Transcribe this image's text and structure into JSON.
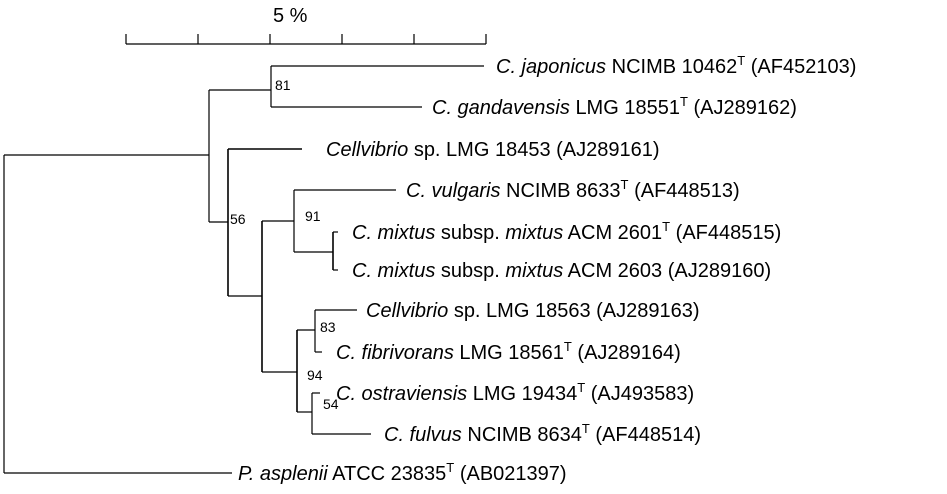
{
  "scale_bar": {
    "label": "5 %"
  },
  "taxa": {
    "japonicus": {
      "species": "C. japonicus",
      "strain": "NCIMB 10462",
      "type_mark": "T",
      "accession": "(AF452103)"
    },
    "gandavensis": {
      "species": "C. gandavensis",
      "strain": "LMG 18551",
      "type_mark": "T",
      "accession": "(AJ289162)"
    },
    "cellvibrio_18453": {
      "genus": "Cellvibrio",
      "rest": "sp. LMG 18453 (AJ289161)"
    },
    "vulgaris": {
      "species": "C. vulgaris",
      "strain": "NCIMB 8633",
      "type_mark": "T",
      "accession": "(AF448513)"
    },
    "mixtus_2601": {
      "species": "C. mixtus",
      "sub": "subsp.",
      "subspecies": "mixtus",
      "strain": "ACM 2601",
      "type_mark": "T",
      "accession": "(AF448515)"
    },
    "mixtus_2603": {
      "species": "C. mixtus",
      "sub": "subsp.",
      "subspecies": "mixtus",
      "strain": "ACM 2603",
      "accession": "(AJ289160)"
    },
    "cellvibrio_18563": {
      "genus": "Cellvibrio",
      "rest": "sp. LMG 18563 (AJ289163)"
    },
    "fibrivorans": {
      "species": "C. fibrivorans",
      "strain": "LMG 18561",
      "type_mark": "T",
      "accession": "(AJ289164)"
    },
    "ostraviensis": {
      "species": "C. ostraviensis",
      "strain": "LMG 19434",
      "type_mark": "T",
      "accession": "(AJ493583)"
    },
    "fulvus": {
      "species": "C. fulvus",
      "strain": "NCIMB 8634",
      "type_mark": "T",
      "accession": "(AF448514)"
    },
    "asplenii": {
      "species": "P. asplenii",
      "strain": "ATCC 23835",
      "type_mark": "T",
      "accession": "(AB021397)"
    }
  },
  "bootstrap": {
    "japonicus_gandavensis": "81",
    "core_clade": "56",
    "vulgaris_mixtus": "91",
    "sp18563_fibrivorans": "83",
    "lower_clade": "94",
    "ostraviensis_fulvus": "54"
  }
}
